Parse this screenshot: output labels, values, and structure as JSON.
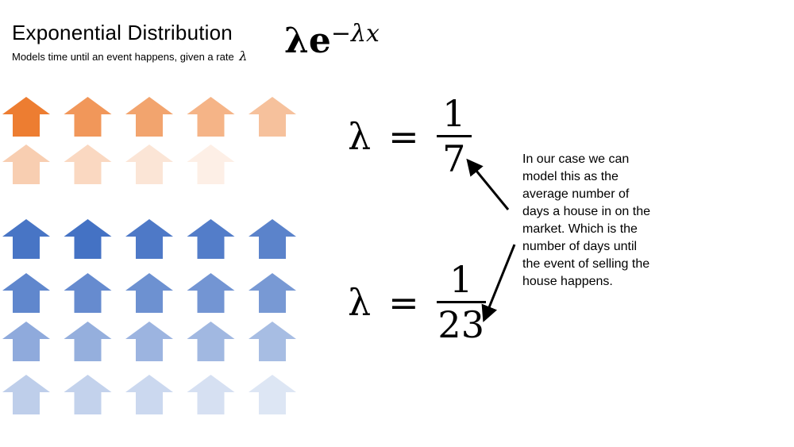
{
  "slide": {
    "title": "Exponential Distribution",
    "subtitle": "Models time until an event happens, given a rate",
    "subtitle_symbol": "λ",
    "formula": {
      "base": "λe",
      "exponent": "−λx"
    },
    "equations": [
      {
        "lhs": "λ",
        "op": "=",
        "numerator": "1",
        "denominator": "7"
      },
      {
        "lhs": "λ",
        "op": "=",
        "numerator": "1",
        "denominator": "23"
      }
    ],
    "explanation_lines": [
      "In our case we can",
      "model this as the",
      "average number of",
      "days a house in on the",
      "market. Which is the",
      "number of days until",
      "the event of selling the",
      "house happens."
    ]
  },
  "arrow_grid": {
    "icon": "up-arrow-icon",
    "orange": {
      "color": "#ed7d31",
      "rows": [
        5,
        4
      ],
      "opacity": [
        1.0,
        0.8,
        0.7,
        0.58,
        0.48,
        0.38,
        0.3,
        0.2,
        0.12
      ]
    },
    "blue": {
      "color": "#4472c4",
      "rows": [
        5,
        5,
        5,
        5
      ],
      "opacity": [
        0.98,
        1.0,
        0.95,
        0.92,
        0.88,
        0.85,
        0.82,
        0.78,
        0.75,
        0.72,
        0.6,
        0.57,
        0.53,
        0.5,
        0.47,
        0.35,
        0.32,
        0.28,
        0.22,
        0.18
      ]
    }
  },
  "colors": {
    "orange_arrow": "#ed7d31",
    "blue_arrow": "#4472c4",
    "pointer": "#000000"
  }
}
